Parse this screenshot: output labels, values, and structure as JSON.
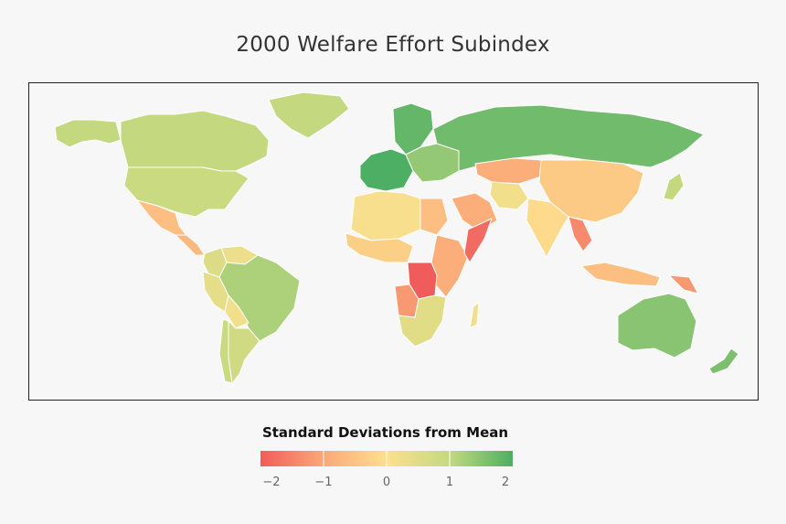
{
  "title": "2000 Welfare Effort Subindex",
  "legend": {
    "title": "Standard Deviations from Mean",
    "ticks": [
      "−2",
      "−1",
      "0",
      "1",
      "2"
    ],
    "tick_values": [
      -2,
      -1,
      0,
      1,
      2
    ],
    "range": [
      -2,
      2
    ],
    "color_stops": [
      "#f05c5c",
      "#fba878",
      "#fde08e",
      "#c4d97f",
      "#4caf64"
    ]
  },
  "regions": [
    {
      "name": "Russia",
      "value": 1.7
    },
    {
      "name": "Greenland",
      "value": 1.0
    },
    {
      "name": "Canada",
      "value": 1.0
    },
    {
      "name": "Alaska",
      "value": 1.0
    },
    {
      "name": "United States",
      "value": 0.9
    },
    {
      "name": "Mexico",
      "value": -0.6
    },
    {
      "name": "Central America",
      "value": -0.7
    },
    {
      "name": "Brazil",
      "value": 1.2
    },
    {
      "name": "Colombia",
      "value": 0.6
    },
    {
      "name": "Venezuela",
      "value": 0.3
    },
    {
      "name": "Peru",
      "value": 0.4
    },
    {
      "name": "Bolivia",
      "value": 0.2
    },
    {
      "name": "Argentina",
      "value": 0.8
    },
    {
      "name": "Chile",
      "value": 0.9
    },
    {
      "name": "Western Europe",
      "value": 2.0
    },
    {
      "name": "Scandinavia",
      "value": 1.8
    },
    {
      "name": "Eastern Europe",
      "value": 1.4
    },
    {
      "name": "North Africa",
      "value": 0.1
    },
    {
      "name": "Egypt",
      "value": -0.6
    },
    {
      "name": "West Africa",
      "value": -0.3
    },
    {
      "name": "DR Congo",
      "value": -2.0
    },
    {
      "name": "East Africa",
      "value": -0.9
    },
    {
      "name": "Somalia",
      "value": -1.8
    },
    {
      "name": "Southern Africa",
      "value": 0.5
    },
    {
      "name": "Angola",
      "value": -1.2
    },
    {
      "name": "Madagascar",
      "value": 0.2
    },
    {
      "name": "Saudi Arabia",
      "value": -0.9
    },
    {
      "name": "Kazakhstan",
      "value": -0.9
    },
    {
      "name": "Iran",
      "value": 0.2
    },
    {
      "name": "China",
      "value": -0.4
    },
    {
      "name": "India",
      "value": -0.1
    },
    {
      "name": "Myanmar",
      "value": -1.4
    },
    {
      "name": "Japan",
      "value": 1.0
    },
    {
      "name": "Indonesia",
      "value": -0.6
    },
    {
      "name": "Papua New Guinea",
      "value": -1.2
    },
    {
      "name": "Australia",
      "value": 1.5
    },
    {
      "name": "New Zealand",
      "value": 1.6
    }
  ]
}
